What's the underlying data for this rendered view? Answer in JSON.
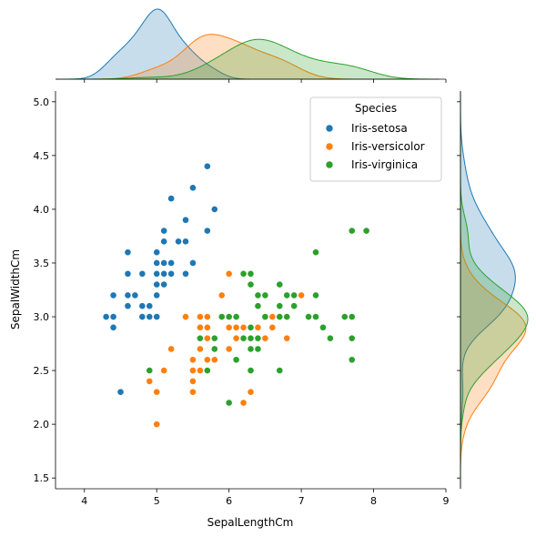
{
  "chart_data": {
    "type": "scatter",
    "title": "",
    "xlabel": "SepalLengthCm",
    "ylabel": "SepalWidthCm",
    "xlim": [
      3.6,
      9.0
    ],
    "ylim": [
      1.4,
      5.1
    ],
    "xticks": [
      "4",
      "5",
      "6",
      "7",
      "8",
      "9"
    ],
    "yticks": [
      "1.5",
      "2.0",
      "2.5",
      "3.0",
      "3.5",
      "4.0",
      "4.5",
      "5.0"
    ],
    "grid": false,
    "legend": {
      "title": "Species",
      "placement": "top-right"
    },
    "marginals": "kde",
    "series": [
      {
        "name": "Iris-setosa",
        "color": "#1f77b4",
        "points": [
          [
            5.1,
            3.5
          ],
          [
            4.9,
            3.0
          ],
          [
            4.7,
            3.2
          ],
          [
            4.6,
            3.1
          ],
          [
            5.0,
            3.6
          ],
          [
            5.4,
            3.9
          ],
          [
            4.6,
            3.4
          ],
          [
            5.0,
            3.4
          ],
          [
            4.4,
            2.9
          ],
          [
            4.9,
            3.1
          ],
          [
            5.4,
            3.7
          ],
          [
            4.8,
            3.4
          ],
          [
            4.8,
            3.0
          ],
          [
            4.3,
            3.0
          ],
          [
            5.8,
            4.0
          ],
          [
            5.7,
            4.4
          ],
          [
            5.4,
            3.9
          ],
          [
            5.1,
            3.5
          ],
          [
            5.7,
            3.8
          ],
          [
            5.1,
            3.8
          ],
          [
            5.4,
            3.4
          ],
          [
            5.1,
            3.7
          ],
          [
            4.6,
            3.6
          ],
          [
            5.1,
            3.3
          ],
          [
            4.8,
            3.4
          ],
          [
            5.0,
            3.0
          ],
          [
            5.0,
            3.4
          ],
          [
            5.2,
            3.5
          ],
          [
            5.2,
            3.4
          ],
          [
            4.7,
            3.2
          ],
          [
            4.8,
            3.1
          ],
          [
            5.4,
            3.4
          ],
          [
            5.2,
            4.1
          ],
          [
            5.5,
            4.2
          ],
          [
            4.9,
            3.1
          ],
          [
            5.0,
            3.2
          ],
          [
            5.5,
            3.5
          ],
          [
            4.9,
            3.1
          ],
          [
            4.4,
            3.0
          ],
          [
            5.1,
            3.4
          ],
          [
            5.0,
            3.5
          ],
          [
            4.5,
            2.3
          ],
          [
            4.4,
            3.2
          ],
          [
            5.0,
            3.5
          ],
          [
            5.1,
            3.8
          ],
          [
            4.8,
            3.0
          ],
          [
            5.1,
            3.8
          ],
          [
            4.6,
            3.2
          ],
          [
            5.3,
            3.7
          ],
          [
            5.0,
            3.3
          ]
        ]
      },
      {
        "name": "Iris-versicolor",
        "color": "#ff7f0e",
        "points": [
          [
            7.0,
            3.2
          ],
          [
            6.4,
            3.2
          ],
          [
            6.9,
            3.1
          ],
          [
            5.5,
            2.3
          ],
          [
            6.5,
            2.8
          ],
          [
            5.7,
            2.8
          ],
          [
            6.3,
            3.3
          ],
          [
            4.9,
            2.4
          ],
          [
            6.6,
            2.9
          ],
          [
            5.2,
            2.7
          ],
          [
            5.0,
            2.0
          ],
          [
            5.9,
            3.0
          ],
          [
            6.0,
            2.2
          ],
          [
            6.1,
            2.9
          ],
          [
            5.6,
            2.9
          ],
          [
            6.7,
            3.1
          ],
          [
            5.6,
            3.0
          ],
          [
            5.8,
            2.7
          ],
          [
            6.2,
            2.2
          ],
          [
            5.6,
            2.5
          ],
          [
            5.9,
            3.2
          ],
          [
            6.1,
            2.8
          ],
          [
            6.3,
            2.5
          ],
          [
            6.1,
            2.8
          ],
          [
            6.4,
            2.9
          ],
          [
            6.6,
            3.0
          ],
          [
            6.8,
            2.8
          ],
          [
            6.7,
            3.0
          ],
          [
            6.0,
            2.9
          ],
          [
            5.7,
            2.6
          ],
          [
            5.5,
            2.4
          ],
          [
            5.5,
            2.4
          ],
          [
            5.8,
            2.7
          ],
          [
            6.0,
            2.7
          ],
          [
            5.4,
            3.0
          ],
          [
            6.0,
            3.4
          ],
          [
            6.7,
            3.1
          ],
          [
            6.3,
            2.3
          ],
          [
            5.6,
            3.0
          ],
          [
            5.5,
            2.5
          ],
          [
            5.5,
            2.6
          ],
          [
            6.1,
            3.0
          ],
          [
            5.8,
            2.6
          ],
          [
            5.0,
            2.3
          ],
          [
            5.6,
            2.7
          ],
          [
            5.7,
            3.0
          ],
          [
            5.7,
            2.9
          ],
          [
            6.2,
            2.9
          ],
          [
            5.1,
            2.5
          ],
          [
            5.7,
            2.8
          ]
        ]
      },
      {
        "name": "Iris-virginica",
        "color": "#2ca02c",
        "points": [
          [
            6.3,
            3.3
          ],
          [
            5.8,
            2.7
          ],
          [
            7.1,
            3.0
          ],
          [
            6.3,
            2.9
          ],
          [
            6.5,
            3.0
          ],
          [
            7.6,
            3.0
          ],
          [
            4.9,
            2.5
          ],
          [
            7.3,
            2.9
          ],
          [
            6.7,
            2.5
          ],
          [
            7.2,
            3.6
          ],
          [
            6.5,
            3.2
          ],
          [
            6.4,
            2.7
          ],
          [
            6.8,
            3.0
          ],
          [
            5.7,
            2.5
          ],
          [
            5.8,
            2.8
          ],
          [
            6.4,
            3.2
          ],
          [
            6.5,
            3.0
          ],
          [
            7.7,
            3.8
          ],
          [
            7.7,
            2.6
          ],
          [
            6.0,
            2.2
          ],
          [
            6.9,
            3.2
          ],
          [
            5.6,
            2.8
          ],
          [
            7.7,
            2.8
          ],
          [
            6.3,
            2.7
          ],
          [
            6.7,
            3.3
          ],
          [
            7.2,
            3.2
          ],
          [
            6.2,
            2.8
          ],
          [
            6.1,
            3.0
          ],
          [
            6.4,
            2.8
          ],
          [
            7.2,
            3.0
          ],
          [
            7.4,
            2.8
          ],
          [
            7.9,
            3.8
          ],
          [
            6.4,
            2.8
          ],
          [
            6.3,
            2.8
          ],
          [
            6.1,
            2.6
          ],
          [
            7.7,
            3.0
          ],
          [
            6.3,
            3.4
          ],
          [
            6.4,
            3.1
          ],
          [
            6.0,
            3.0
          ],
          [
            6.9,
            3.1
          ],
          [
            6.7,
            3.1
          ],
          [
            6.9,
            3.1
          ],
          [
            5.8,
            2.7
          ],
          [
            6.8,
            3.2
          ],
          [
            6.7,
            3.3
          ],
          [
            6.7,
            3.0
          ],
          [
            6.3,
            2.5
          ],
          [
            6.5,
            3.0
          ],
          [
            6.2,
            3.4
          ],
          [
            5.9,
            3.0
          ]
        ]
      }
    ]
  }
}
